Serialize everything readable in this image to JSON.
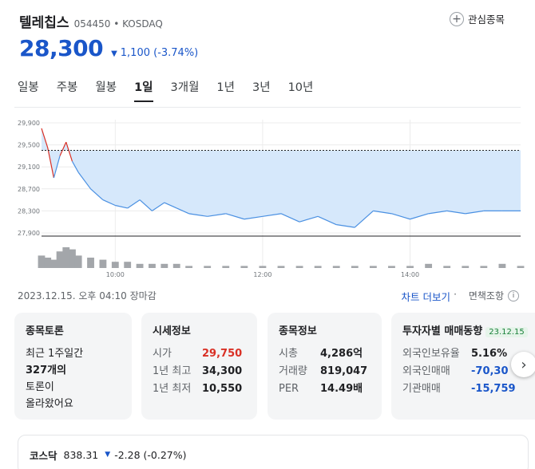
{
  "stock": {
    "name": "텔레칩스",
    "code": "054450",
    "market": "KOSDAQ",
    "price": "28,300",
    "change": "1,100",
    "change_pct": "(-3.74%)",
    "fav_label": "관심종목"
  },
  "tabs": [
    "일봉",
    "주봉",
    "월봉",
    "1일",
    "3개월",
    "1년",
    "3년",
    "10년"
  ],
  "active_tab": "1일",
  "colors": {
    "down": "#1a56c9",
    "up": "#d93025",
    "fill": "#d6e8fb",
    "line": "#4a90e2"
  },
  "chart_data": {
    "type": "area",
    "y_ticks": [
      "29,900",
      "29,500",
      "29,100",
      "28,700",
      "28,300",
      "27,900"
    ],
    "ylim": [
      27900,
      29900
    ],
    "x_ticks": [
      "10:00",
      "12:00",
      "14:00"
    ],
    "prev_close": 29400,
    "x": [
      "09:00",
      "09:05",
      "09:10",
      "09:15",
      "09:20",
      "09:25",
      "09:30",
      "09:40",
      "09:50",
      "10:00",
      "10:10",
      "10:20",
      "10:30",
      "10:40",
      "10:50",
      "11:00",
      "11:15",
      "11:30",
      "11:45",
      "12:00",
      "12:15",
      "12:30",
      "12:45",
      "13:00",
      "13:15",
      "13:30",
      "13:45",
      "14:00",
      "14:15",
      "14:30",
      "14:45",
      "15:00",
      "15:15",
      "15:30"
    ],
    "values": [
      29800,
      29450,
      28900,
      29300,
      29550,
      29200,
      29000,
      28700,
      28500,
      28400,
      28350,
      28500,
      28300,
      28450,
      28350,
      28250,
      28200,
      28250,
      28150,
      28200,
      28250,
      28100,
      28200,
      28050,
      28000,
      28300,
      28250,
      28150,
      28250,
      28300,
      28250,
      28300,
      28300,
      28300
    ],
    "volume": [
      6,
      5,
      4,
      8,
      10,
      9,
      6,
      5,
      4,
      3,
      3,
      2,
      2,
      2,
      2,
      1,
      1,
      1,
      1,
      1,
      1,
      1,
      1,
      1,
      1,
      1,
      1,
      1,
      2,
      1,
      1,
      1,
      2,
      1
    ]
  },
  "timestamp": "2023.12.15. 오후 04:10 장마감",
  "chart_more": "차트 더보기",
  "disclaimer": "면책조항",
  "cards": {
    "discuss": {
      "title": "종목토론",
      "lines": [
        "최근 1주일간",
        "327개의",
        "토론이",
        "올라왔어요"
      ]
    },
    "market": {
      "title": "시세정보",
      "rows": [
        {
          "label": "시가",
          "value": "29,750"
        },
        {
          "label": "1년 최고",
          "value": "34,300"
        },
        {
          "label": "1년 최저",
          "value": "10,550"
        }
      ]
    },
    "info": {
      "title": "종목정보",
      "rows": [
        {
          "label": "시총",
          "value": "4,286억"
        },
        {
          "label": "거래량",
          "value": "819,047"
        },
        {
          "label": "PER",
          "value": "14.49배"
        }
      ]
    },
    "investor": {
      "title": "투자자별 매매동향",
      "badge": "23.12.15",
      "rows": [
        {
          "label": "외국인보유율",
          "value": "5.16%"
        },
        {
          "label": "외국인매매",
          "value": "-70,30"
        },
        {
          "label": "기관매매",
          "value": "-15,759"
        }
      ]
    }
  },
  "index": {
    "name": "코스닥",
    "value": "838.31",
    "change": "-2.28 (-0.27%)"
  }
}
